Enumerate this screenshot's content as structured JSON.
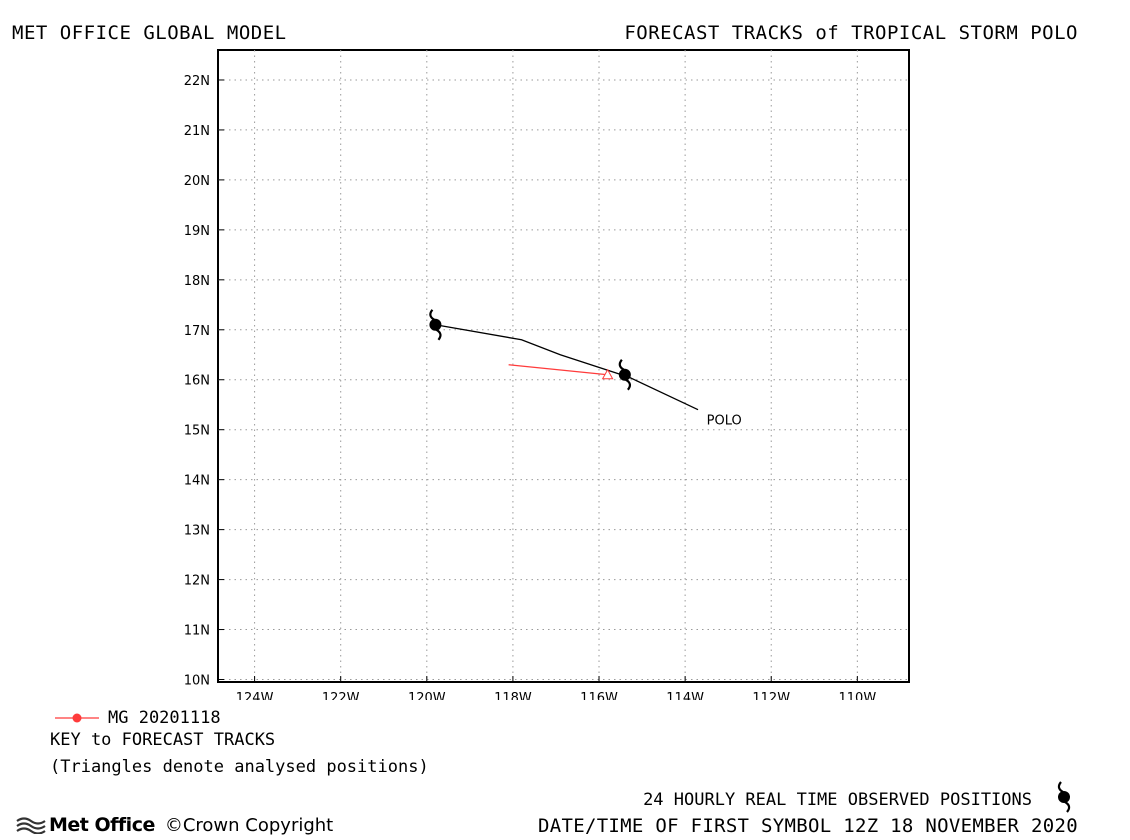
{
  "header": {
    "left_title": "MET OFFICE GLOBAL MODEL",
    "right_title": "FORECAST TRACKS of TROPICAL STORM POLO"
  },
  "map": {
    "lat_labels": [
      "22N",
      "21N",
      "20N",
      "19N",
      "18N",
      "17N",
      "16N",
      "15N",
      "14N",
      "13N",
      "12N",
      "11N",
      "10N"
    ],
    "lon_labels": [
      "124W",
      "122W",
      "120W",
      "118W",
      "116W",
      "114W",
      "112W",
      "110W"
    ],
    "lat_range": [
      9.95,
      22.6
    ],
    "lon_range": [
      -124.85,
      -108.8
    ],
    "grid": "dotted",
    "observed_track": [
      [
        -119.8,
        17.1
      ],
      [
        -117.8,
        16.8
      ],
      [
        -116.9,
        16.5
      ],
      [
        -115.3,
        16.05
      ],
      [
        -113.7,
        15.4
      ]
    ],
    "observed_symbols": [
      [
        -119.8,
        17.1
      ],
      [
        -115.4,
        16.1
      ]
    ],
    "forecast_tracks": [
      {
        "name": "MG 20201118",
        "color": "#ff3b3b",
        "points": [
          [
            -118.1,
            16.3
          ],
          [
            -115.8,
            16.1
          ]
        ],
        "analysed_position": [
          -115.8,
          16.1
        ]
      }
    ],
    "storm_label": {
      "text": "POLO",
      "lon": -113.5,
      "lat": 15.1
    }
  },
  "legend": {
    "entry": "MG 20201118",
    "entry_color": "#ff3b3b",
    "key_title": "KEY to FORECAST TRACKS",
    "key_note": "(Triangles denote analysed positions)"
  },
  "footer": {
    "observed_positions": "24 HOURLY REAL TIME OBSERVED POSITIONS",
    "first_symbol": "DATE/TIME OF FIRST SYMBOL 12Z 18 NOVEMBER 2020",
    "brand": "Met Office",
    "copyright": "©Crown Copyright"
  }
}
